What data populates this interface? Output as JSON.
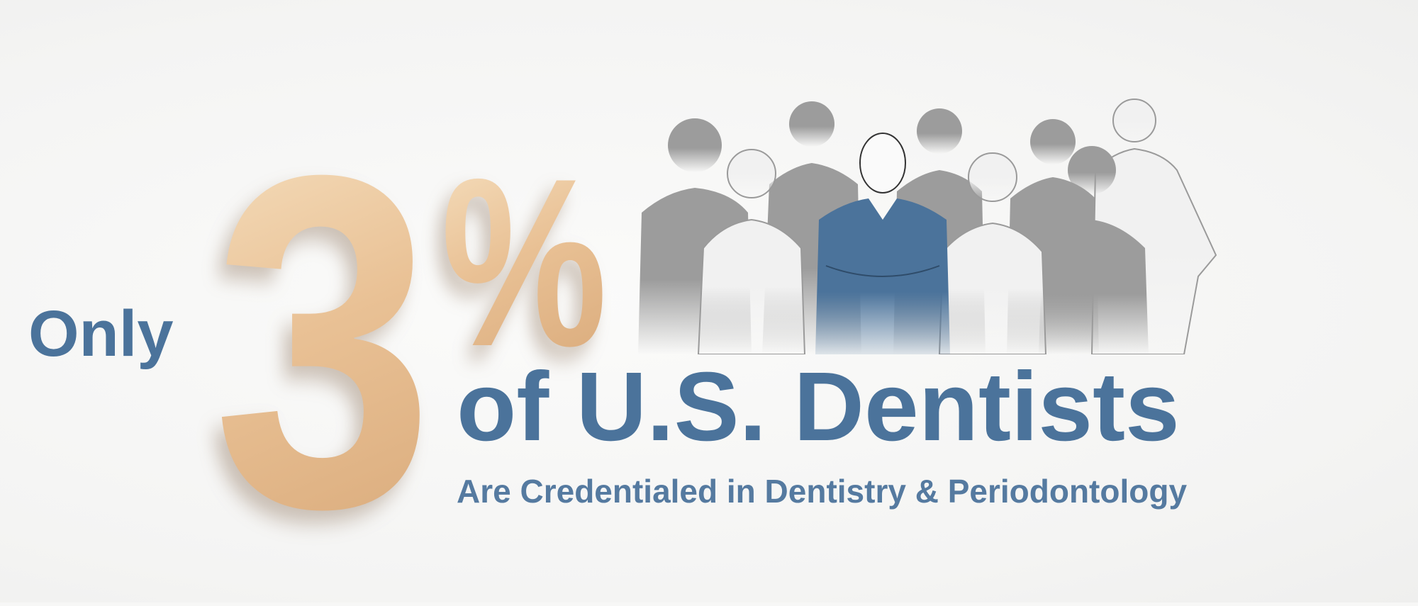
{
  "graphic": {
    "prefix": "Only",
    "stat_number": "3",
    "stat_symbol": "%",
    "headline": "of U.S. Dentists",
    "subtitle": "Are Credentialed in Dentistry & Periodontology",
    "illustration": "group-of-dental-professionals",
    "colors": {
      "text_blue": "#4b739b",
      "wood": "#e9c195",
      "figures_grey": "#9a9a9a",
      "highlight_figure": "#4b739b"
    }
  }
}
